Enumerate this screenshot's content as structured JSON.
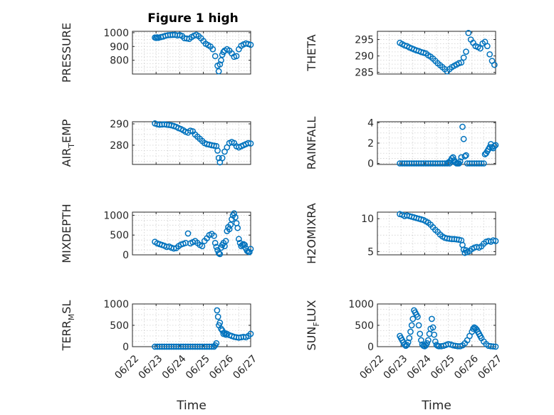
{
  "figure": {
    "title": "Figure 1 high",
    "marker_color": "#0072BD",
    "x_tick_labels": [
      "06/22",
      "06/23",
      "06/24",
      "06/25",
      "06/26",
      "06/27"
    ],
    "xlabel": "Time"
  },
  "chart_data": [
    {
      "type": "scatter",
      "title": "Figure 1 high",
      "ylabel": "PRESSURE",
      "xlim": [
        0,
        5
      ],
      "ylim": [
        700,
        1010
      ],
      "yticks": [
        800,
        900,
        1000
      ],
      "grid": true,
      "x": [
        0.95,
        1.0,
        1.05,
        1.1,
        1.2,
        1.3,
        1.4,
        1.5,
        1.6,
        1.7,
        1.8,
        1.9,
        2.0,
        2.1,
        2.2,
        2.3,
        2.4,
        2.5,
        2.6,
        2.7,
        2.8,
        2.9,
        3.0,
        3.1,
        3.2,
        3.3,
        3.4,
        3.5,
        3.6,
        3.65,
        3.7,
        3.75,
        3.8,
        3.85,
        3.9,
        4.0,
        4.1,
        4.2,
        4.3,
        4.4,
        4.5,
        4.6,
        4.7,
        4.8,
        4.9,
        5.0
      ],
      "y": [
        965,
        962,
        966,
        963,
        968,
        972,
        978,
        982,
        983,
        984,
        985,
        980,
        983,
        976,
        960,
        958,
        955,
        968,
        978,
        985,
        975,
        960,
        940,
        920,
        910,
        900,
        880,
        830,
        760,
        720,
        770,
        800,
        840,
        860,
        870,
        880,
        870,
        850,
        825,
        830,
        880,
        905,
        915,
        922,
        918,
        912
      ]
    },
    {
      "type": "scatter",
      "ylabel": "THETA",
      "xlim": [
        0,
        5
      ],
      "ylim": [
        284.5,
        297.5
      ],
      "yticks": [
        285,
        290,
        295
      ],
      "grid": true,
      "x": [
        0.95,
        1.05,
        1.15,
        1.25,
        1.35,
        1.45,
        1.55,
        1.65,
        1.75,
        1.85,
        1.95,
        2.05,
        2.15,
        2.25,
        2.35,
        2.45,
        2.55,
        2.65,
        2.75,
        2.85,
        2.95,
        3.05,
        3.15,
        3.25,
        3.35,
        3.45,
        3.55,
        3.65,
        3.75,
        3.85,
        3.95,
        4.05,
        4.15,
        4.25,
        4.35,
        4.45,
        4.55,
        4.65,
        4.75,
        4.85,
        4.95
      ],
      "y": [
        294,
        293.6,
        293.2,
        293,
        292.6,
        292.3,
        292,
        291.7,
        291.5,
        291.2,
        291,
        290.8,
        290.2,
        289.8,
        289.2,
        288.5,
        287.8,
        287.2,
        286.6,
        286,
        285.3,
        286,
        286.6,
        287,
        287.4,
        287.8,
        288,
        289.5,
        291.3,
        297,
        295,
        294,
        293,
        292.7,
        292.3,
        293.8,
        294.3,
        293,
        290.5,
        288.5,
        287.3
      ]
    },
    {
      "type": "scatter",
      "ylabel": "AIR_TEMP",
      "xlim": [
        0,
        5
      ],
      "ylim": [
        271,
        291
      ],
      "yticks": [
        280,
        290
      ],
      "grid": true,
      "x": [
        0.95,
        1.05,
        1.15,
        1.25,
        1.35,
        1.45,
        1.55,
        1.65,
        1.75,
        1.85,
        1.95,
        2.05,
        2.15,
        2.25,
        2.35,
        2.45,
        2.55,
        2.65,
        2.75,
        2.85,
        2.95,
        3.05,
        3.15,
        3.25,
        3.35,
        3.45,
        3.55,
        3.6,
        3.65,
        3.7,
        3.8,
        3.9,
        4.0,
        4.1,
        4.2,
        4.3,
        4.4,
        4.5,
        4.6,
        4.7,
        4.8,
        4.9,
        5.0
      ],
      "y": [
        290.2,
        289.8,
        289.6,
        289.7,
        289.8,
        289.6,
        289.5,
        289.3,
        289,
        288.6,
        288,
        287.6,
        287,
        286.3,
        285.9,
        286.8,
        286.5,
        285,
        284,
        283,
        282,
        281,
        280.5,
        280.3,
        280,
        279.8,
        279.6,
        277.5,
        274,
        272,
        274,
        277,
        279,
        281,
        281.5,
        281,
        279.5,
        279,
        279.5,
        280,
        280.5,
        281,
        280.8
      ]
    },
    {
      "type": "scatter",
      "ylabel": "RAINFALL",
      "xlim": [
        0,
        5
      ],
      "ylim": [
        -0.1,
        4.1
      ],
      "yticks": [
        0,
        2,
        4
      ],
      "grid": true,
      "x": [
        0.95,
        1.05,
        1.15,
        1.25,
        1.35,
        1.45,
        1.55,
        1.65,
        1.75,
        1.85,
        1.95,
        2.05,
        2.15,
        2.25,
        2.35,
        2.45,
        2.55,
        2.65,
        2.75,
        2.85,
        2.95,
        3.0,
        3.05,
        3.1,
        3.15,
        3.2,
        3.25,
        3.3,
        3.35,
        3.4,
        3.45,
        3.5,
        3.55,
        3.6,
        3.65,
        3.7,
        3.75,
        3.8,
        3.9,
        4.0,
        4.1,
        4.2,
        4.3,
        4.4,
        4.5,
        4.55,
        4.6,
        4.65,
        4.7,
        4.75,
        4.8,
        4.85,
        4.9,
        4.95,
        5.0
      ],
      "y": [
        0,
        0,
        0,
        0,
        0,
        0,
        0,
        0,
        0,
        0,
        0,
        0,
        0,
        0,
        0,
        0,
        0,
        0,
        0,
        0,
        0,
        0.1,
        0,
        0.3,
        0.5,
        0.6,
        0.3,
        0.1,
        0,
        0,
        0,
        0.2,
        0.6,
        3.6,
        2.4,
        0.7,
        0.8,
        0,
        0,
        0,
        0,
        0,
        0,
        0,
        0,
        0.9,
        1.0,
        1.2,
        1.4,
        1.6,
        1.9,
        1.6,
        1.5,
        1.7,
        1.8
      ]
    },
    {
      "type": "scatter",
      "ylabel": "MIXDEPTH",
      "xlim": [
        0,
        5
      ],
      "ylim": [
        0,
        1080
      ],
      "yticks": [
        0,
        500,
        1000
      ],
      "grid": true,
      "x": [
        0.95,
        1.05,
        1.15,
        1.25,
        1.35,
        1.45,
        1.55,
        1.65,
        1.75,
        1.85,
        1.95,
        2.05,
        2.15,
        2.25,
        2.35,
        2.45,
        2.55,
        2.65,
        2.75,
        2.85,
        2.95,
        3.05,
        3.15,
        3.25,
        3.35,
        3.45,
        3.5,
        3.55,
        3.6,
        3.65,
        3.7,
        3.75,
        3.8,
        3.85,
        3.9,
        3.95,
        4.0,
        4.05,
        4.1,
        4.15,
        4.2,
        4.25,
        4.3,
        4.35,
        4.4,
        4.45,
        4.5,
        4.55,
        4.6,
        4.65,
        4.7,
        4.75,
        4.8,
        4.85,
        4.9,
        4.95,
        5.0
      ],
      "y": [
        330,
        290,
        270,
        250,
        230,
        200,
        210,
        180,
        160,
        170,
        220,
        260,
        280,
        300,
        540,
        290,
        320,
        350,
        300,
        250,
        220,
        350,
        420,
        500,
        530,
        480,
        300,
        200,
        120,
        40,
        20,
        180,
        250,
        300,
        220,
        350,
        600,
        700,
        650,
        760,
        900,
        1000,
        1050,
        950,
        800,
        680,
        400,
        300,
        220,
        250,
        270,
        250,
        160,
        100,
        80,
        70,
        150
      ]
    },
    {
      "type": "scatter",
      "ylabel": "H2OMIXRA",
      "xlim": [
        0,
        5
      ],
      "ylim": [
        4.5,
        11
      ],
      "yticks": [
        5,
        10
      ],
      "grid": true,
      "x": [
        0.95,
        1.05,
        1.15,
        1.25,
        1.35,
        1.45,
        1.55,
        1.65,
        1.75,
        1.85,
        1.95,
        2.05,
        2.15,
        2.25,
        2.35,
        2.45,
        2.55,
        2.65,
        2.75,
        2.85,
        2.95,
        3.05,
        3.15,
        3.25,
        3.35,
        3.45,
        3.55,
        3.6,
        3.65,
        3.7,
        3.75,
        3.8,
        3.9,
        4.0,
        4.1,
        4.2,
        4.3,
        4.4,
        4.5,
        4.6,
        4.7,
        4.8,
        4.9,
        5.0
      ],
      "y": [
        10.7,
        10.6,
        10.4,
        10.5,
        10.4,
        10.3,
        10.2,
        10.1,
        10.0,
        9.9,
        9.8,
        9.6,
        9.4,
        9.1,
        8.7,
        8.3,
        8.0,
        7.6,
        7.3,
        7.1,
        7.0,
        6.95,
        6.9,
        6.9,
        6.85,
        6.8,
        6.7,
        6.0,
        5.3,
        4.8,
        5.2,
        4.9,
        5.1,
        5.4,
        5.6,
        5.7,
        5.6,
        5.8,
        6.2,
        6.5,
        6.6,
        6.5,
        6.7,
        6.6
      ]
    },
    {
      "type": "scatter",
      "ylabel": "TERR_MSL",
      "xlim": [
        0,
        5
      ],
      "ylim": [
        0,
        1000
      ],
      "yticks": [
        0,
        500,
        1000
      ],
      "grid": true,
      "x": [
        0.95,
        1.05,
        1.15,
        1.25,
        1.35,
        1.45,
        1.55,
        1.65,
        1.75,
        1.85,
        1.95,
        2.05,
        2.15,
        2.25,
        2.35,
        2.45,
        2.55,
        2.65,
        2.75,
        2.85,
        2.95,
        3.05,
        3.15,
        3.25,
        3.35,
        3.45,
        3.5,
        3.55,
        3.58,
        3.62,
        3.66,
        3.7,
        3.75,
        3.8,
        3.85,
        3.9,
        3.95,
        4.0,
        4.1,
        4.2,
        4.3,
        4.4,
        4.5,
        4.6,
        4.7,
        4.8,
        4.9,
        5.0
      ],
      "y": [
        0,
        0,
        0,
        0,
        0,
        0,
        0,
        0,
        0,
        0,
        0,
        0,
        0,
        0,
        0,
        0,
        0,
        0,
        0,
        0,
        0,
        0,
        0,
        0,
        0,
        0,
        30,
        80,
        850,
        700,
        500,
        560,
        420,
        380,
        300,
        320,
        280,
        300,
        270,
        250,
        230,
        220,
        210,
        220,
        230,
        220,
        250,
        300
      ]
    },
    {
      "type": "scatter",
      "ylabel": "SUN_FLUX",
      "xlim": [
        0,
        5
      ],
      "ylim": [
        0,
        1000
      ],
      "yticks": [
        0,
        500,
        1000
      ],
      "grid": true,
      "x": [
        0.95,
        1.0,
        1.05,
        1.1,
        1.15,
        1.2,
        1.25,
        1.3,
        1.35,
        1.4,
        1.45,
        1.5,
        1.55,
        1.6,
        1.65,
        1.7,
        1.75,
        1.8,
        1.85,
        1.9,
        1.95,
        2.0,
        2.05,
        2.1,
        2.15,
        2.2,
        2.25,
        2.3,
        2.35,
        2.4,
        2.45,
        2.5,
        2.55,
        2.6,
        2.7,
        2.8,
        2.9,
        3.0,
        3.1,
        3.2,
        3.3,
        3.4,
        3.5,
        3.6,
        3.7,
        3.8,
        3.9,
        4.0,
        4.05,
        4.1,
        4.15,
        4.2,
        4.25,
        4.3,
        4.35,
        4.4,
        4.5,
        4.6,
        4.7,
        4.8,
        4.9,
        5.0
      ],
      "y": [
        250,
        200,
        150,
        100,
        50,
        20,
        40,
        100,
        200,
        350,
        500,
        650,
        850,
        800,
        750,
        700,
        500,
        300,
        150,
        50,
        20,
        10,
        30,
        80,
        150,
        300,
        420,
        650,
        450,
        280,
        120,
        40,
        20,
        10,
        10,
        20,
        40,
        60,
        50,
        30,
        20,
        10,
        10,
        30,
        80,
        150,
        250,
        350,
        420,
        450,
        430,
        400,
        350,
        300,
        250,
        200,
        120,
        60,
        20,
        10,
        5,
        0
      ]
    }
  ]
}
